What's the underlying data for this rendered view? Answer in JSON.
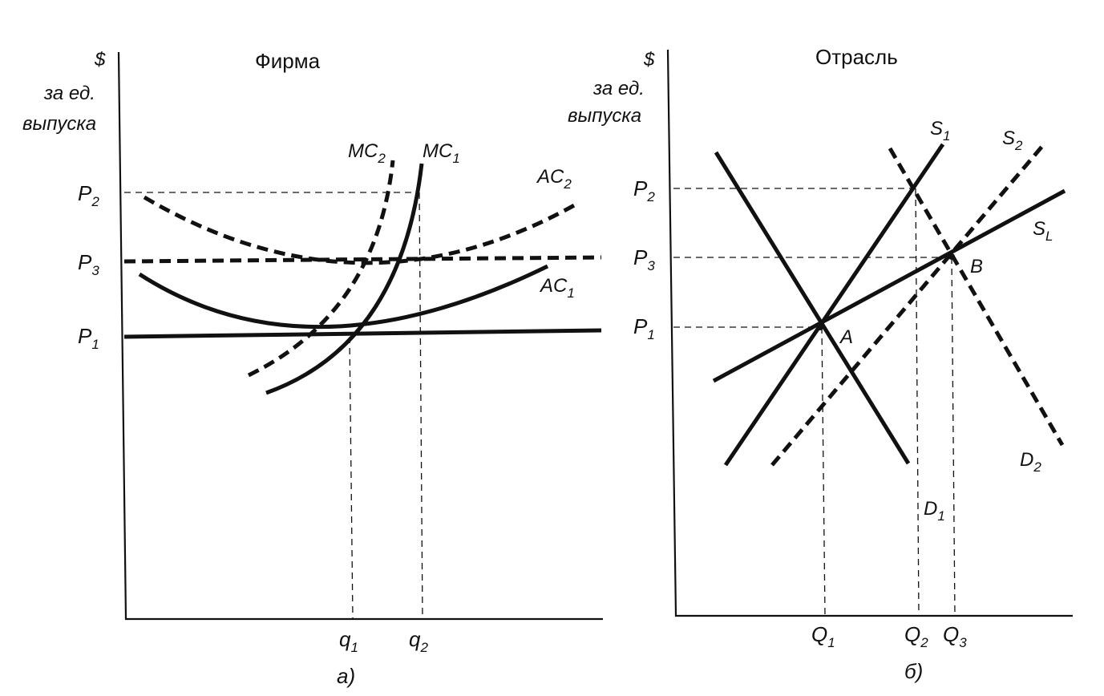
{
  "firm_panel": {
    "title": "Фирма",
    "y_unit_symbol": "$",
    "y_unit_line1": "за ед.",
    "y_unit_line2": "выпуска",
    "price_ticks": [
      {
        "base": "P",
        "sub": "2"
      },
      {
        "base": "P",
        "sub": "3"
      },
      {
        "base": "P",
        "sub": "1"
      }
    ],
    "quantity_ticks": [
      {
        "base": "q",
        "sub": "1"
      },
      {
        "base": "q",
        "sub": "2"
      }
    ],
    "curves": [
      {
        "base": "MC",
        "sub": "2"
      },
      {
        "base": "MC",
        "sub": "1"
      },
      {
        "base": "AC",
        "sub": "2"
      },
      {
        "base": "AC",
        "sub": "1"
      }
    ],
    "caption": "а)"
  },
  "industry_panel": {
    "title": "Отрасль",
    "y_unit_symbol": "$",
    "y_unit_line1": "за ед.",
    "y_unit_line2": "выпуска",
    "price_ticks": [
      {
        "base": "P",
        "sub": "2"
      },
      {
        "base": "P",
        "sub": "3"
      },
      {
        "base": "P",
        "sub": "1"
      }
    ],
    "quantity_ticks": [
      {
        "base": "Q",
        "sub": "1"
      },
      {
        "base": "Q",
        "sub": "2"
      },
      {
        "base": "Q",
        "sub": "3"
      }
    ],
    "curves": [
      {
        "base": "S",
        "sub": "1"
      },
      {
        "base": "S",
        "sub": "2"
      },
      {
        "base": "S",
        "sub": "L"
      },
      {
        "base": "D",
        "sub": "2"
      },
      {
        "base": "D",
        "sub": "1"
      }
    ],
    "points": [
      "A",
      "B"
    ],
    "caption": "б)"
  }
}
